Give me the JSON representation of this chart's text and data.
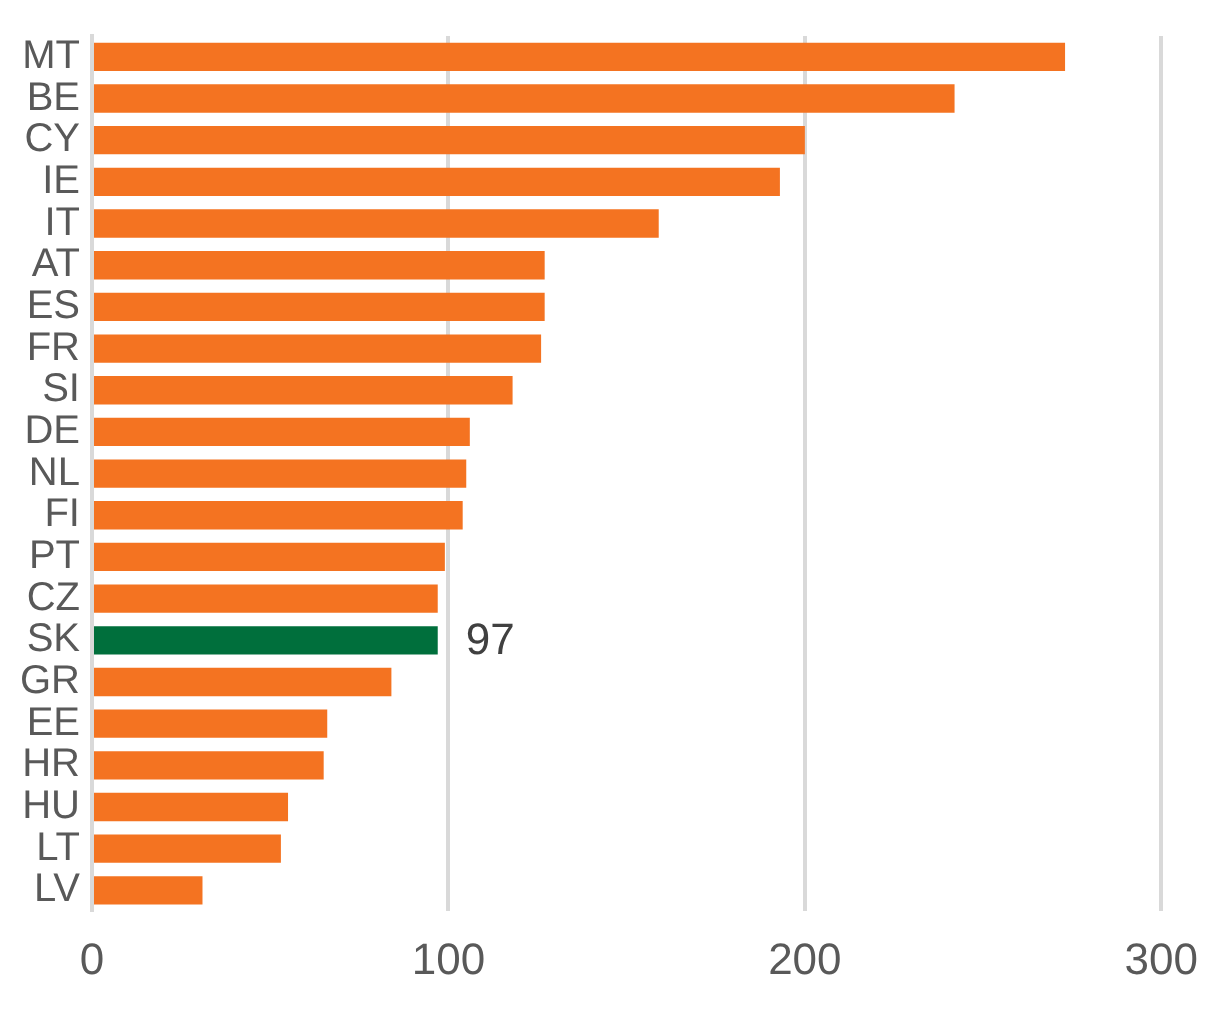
{
  "chart_data": {
    "type": "bar",
    "orientation": "horizontal",
    "categories": [
      "MT",
      "BE",
      "CY",
      "IE",
      "IT",
      "AT",
      "ES",
      "FR",
      "SI",
      "DE",
      "NL",
      "FI",
      "PT",
      "CZ",
      "SK",
      "GR",
      "EE",
      "HR",
      "HU",
      "LT",
      "LV"
    ],
    "values": [
      273,
      242,
      200,
      193,
      159,
      127,
      127,
      126,
      118,
      106,
      105,
      104,
      99,
      97,
      97,
      84,
      66,
      65,
      55,
      53,
      31
    ],
    "colors": [
      "#f47321",
      "#f47321",
      "#f47321",
      "#f47321",
      "#f47321",
      "#f47321",
      "#f47321",
      "#f47321",
      "#f47321",
      "#f47321",
      "#f47321",
      "#f47321",
      "#f47321",
      "#f47321",
      "#006f3c",
      "#f47321",
      "#f47321",
      "#f47321",
      "#f47321",
      "#f47321",
      "#f47321"
    ],
    "value_labels": [
      null,
      null,
      null,
      null,
      null,
      null,
      null,
      null,
      null,
      null,
      null,
      null,
      null,
      null,
      "97",
      null,
      null,
      null,
      null,
      null,
      null
    ],
    "xlim": [
      0,
      300
    ],
    "xticks": [
      0,
      100,
      200,
      300
    ],
    "grid": "x",
    "legend": false
  }
}
